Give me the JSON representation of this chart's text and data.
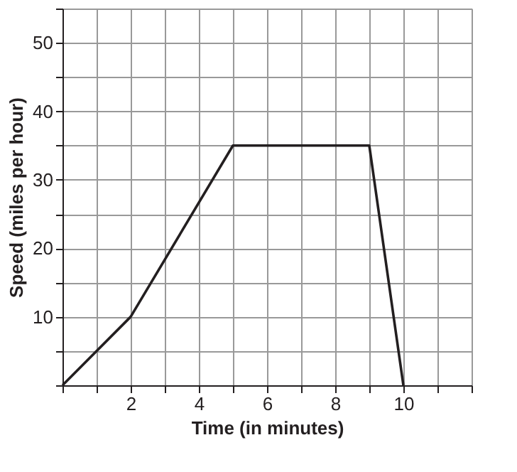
{
  "chart_data": {
    "type": "line",
    "xlabel": "Time (in minutes)",
    "ylabel": "Speed (miles per hour)",
    "x": [
      0,
      2,
      5,
      9,
      10
    ],
    "series": [
      {
        "color": "#231f20",
        "values": [
          0,
          10,
          35,
          35,
          0
        ]
      }
    ],
    "xlim": [
      0,
      12
    ],
    "ylim": [
      0,
      55
    ],
    "xticks": [
      {
        "value": 0,
        "label": null
      },
      {
        "value": 1,
        "label": null
      },
      2,
      {
        "value": 3,
        "label": null
      },
      4,
      {
        "value": 5,
        "label": null
      },
      6,
      {
        "value": 7,
        "label": null
      },
      8,
      {
        "value": 9,
        "label": null
      },
      10,
      {
        "value": 11,
        "label": null
      },
      {
        "value": 12,
        "label": null
      }
    ],
    "yticks": [
      {
        "value": 0,
        "label": null
      },
      {
        "value": 5,
        "label": null
      },
      10,
      {
        "value": 15,
        "label": null
      },
      20,
      {
        "value": 25,
        "label": null
      },
      30,
      {
        "value": 35,
        "label": null
      },
      40,
      {
        "value": 45,
        "label": null
      },
      50,
      {
        "value": 55,
        "label": null
      }
    ],
    "grid": true,
    "marker": "none",
    "line_style": "solid"
  }
}
